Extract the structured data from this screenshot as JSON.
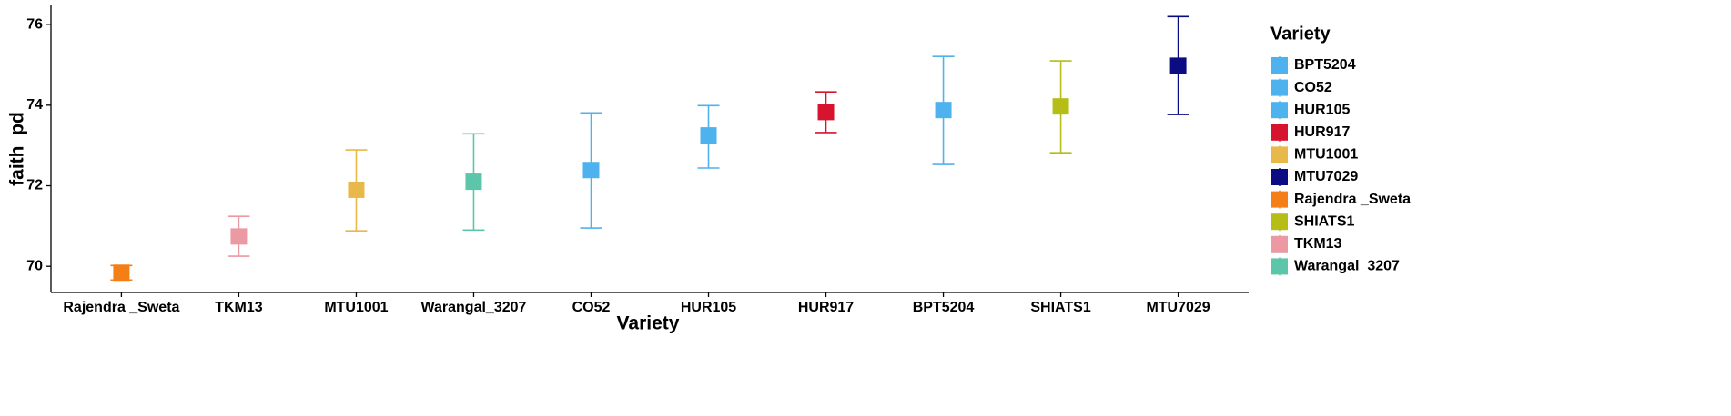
{
  "chart_data": {
    "type": "errorbar",
    "x_label": "Variety",
    "y_label": "faith_pd",
    "categories": [
      "Rajendra _Sweta",
      "TKM13",
      "MTU1001",
      "Warangal_3207",
      "CO52",
      "HUR105",
      "HUR917",
      "BPT5204",
      "SHIATS1",
      "MTU7029"
    ],
    "values": [
      69.84,
      70.74,
      71.9,
      72.1,
      72.39,
      73.25,
      73.83,
      73.88,
      73.97,
      74.98
    ],
    "lower": [
      69.66,
      70.25,
      70.88,
      70.9,
      70.95,
      72.44,
      73.32,
      72.53,
      72.82,
      73.77
    ],
    "upper": [
      70.02,
      71.24,
      72.89,
      73.29,
      73.81,
      73.99,
      74.33,
      75.21,
      75.1,
      76.2
    ],
    "colors": [
      "#f57f17",
      "#eb9aa3",
      "#e8b84a",
      "#5cc6aa",
      "#4eb2ee",
      "#4eb2ee",
      "#d6142e",
      "#4eb2ee",
      "#b5bd16",
      "#0c0c82"
    ],
    "ylim": [
      69.35,
      76.5
    ],
    "yticks": [
      70,
      72,
      74,
      76
    ],
    "grid": false,
    "legend": {
      "title": "Variety",
      "position": "right",
      "entries": [
        {
          "name": "BPT5204",
          "color": "#4eb2ee"
        },
        {
          "name": "CO52",
          "color": "#4eb2ee"
        },
        {
          "name": "HUR105",
          "color": "#4eb2ee"
        },
        {
          "name": "HUR917",
          "color": "#d6142e"
        },
        {
          "name": "MTU1001",
          "color": "#e8b84a"
        },
        {
          "name": "MTU7029",
          "color": "#0c0c82"
        },
        {
          "name": "Rajendra _Sweta",
          "color": "#f57f17"
        },
        {
          "name": "SHIATS1",
          "color": "#b5bd16"
        },
        {
          "name": "TKM13",
          "color": "#eb9aa3"
        },
        {
          "name": "Warangal_3207",
          "color": "#5cc6aa"
        }
      ]
    }
  }
}
